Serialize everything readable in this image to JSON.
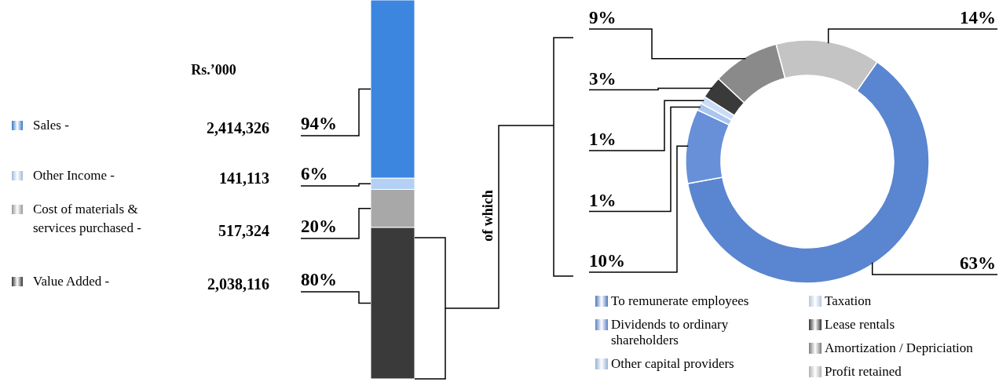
{
  "chart_data": [
    {
      "type": "bar",
      "stacked": true,
      "categories": [
        null
      ],
      "legend": "left",
      "annotations": [
        "Rs.’000",
        "2,414,326",
        "141,113",
        "517,324",
        "2,038,116"
      ],
      "series": [
        {
          "name": "Value Added -",
          "color": "#3a3a3a",
          "values": [
            80
          ],
          "value_labels": [
            "80%"
          ]
        },
        {
          "name": "Cost of materials & services purchased -",
          "color": "#a8a8a8",
          "values": [
            20
          ],
          "value_labels": [
            "20%"
          ]
        },
        {
          "name": "Other Income -",
          "color": "#b4d0f4",
          "values": [
            6
          ],
          "value_labels": [
            "6%"
          ]
        },
        {
          "name": "Sales -",
          "color": "#3c86e0",
          "values": [
            94
          ],
          "value_labels": [
            "94%"
          ]
        }
      ]
    },
    {
      "type": "donut",
      "legend": "bottom",
      "annotations": [
        "of which"
      ],
      "categories": [
        "To remunerate employees",
        "Dividends to ordinary shareholders",
        "Other capital providers",
        "Taxation",
        "Lease rentals",
        "Amortization / Depriciation",
        "Profit retained"
      ],
      "values": [
        63,
        10,
        1,
        1,
        3,
        9,
        14
      ],
      "value_labels": [
        "63%",
        "10%",
        "1%",
        "1%",
        "3%",
        "9%",
        "14%"
      ],
      "colors": [
        "#5a85d0",
        "#6790d8",
        "#a9c6ef",
        "#cadcf6",
        "#3a3a3a",
        "#8a8a8a",
        "#c4c4c4"
      ]
    }
  ]
}
